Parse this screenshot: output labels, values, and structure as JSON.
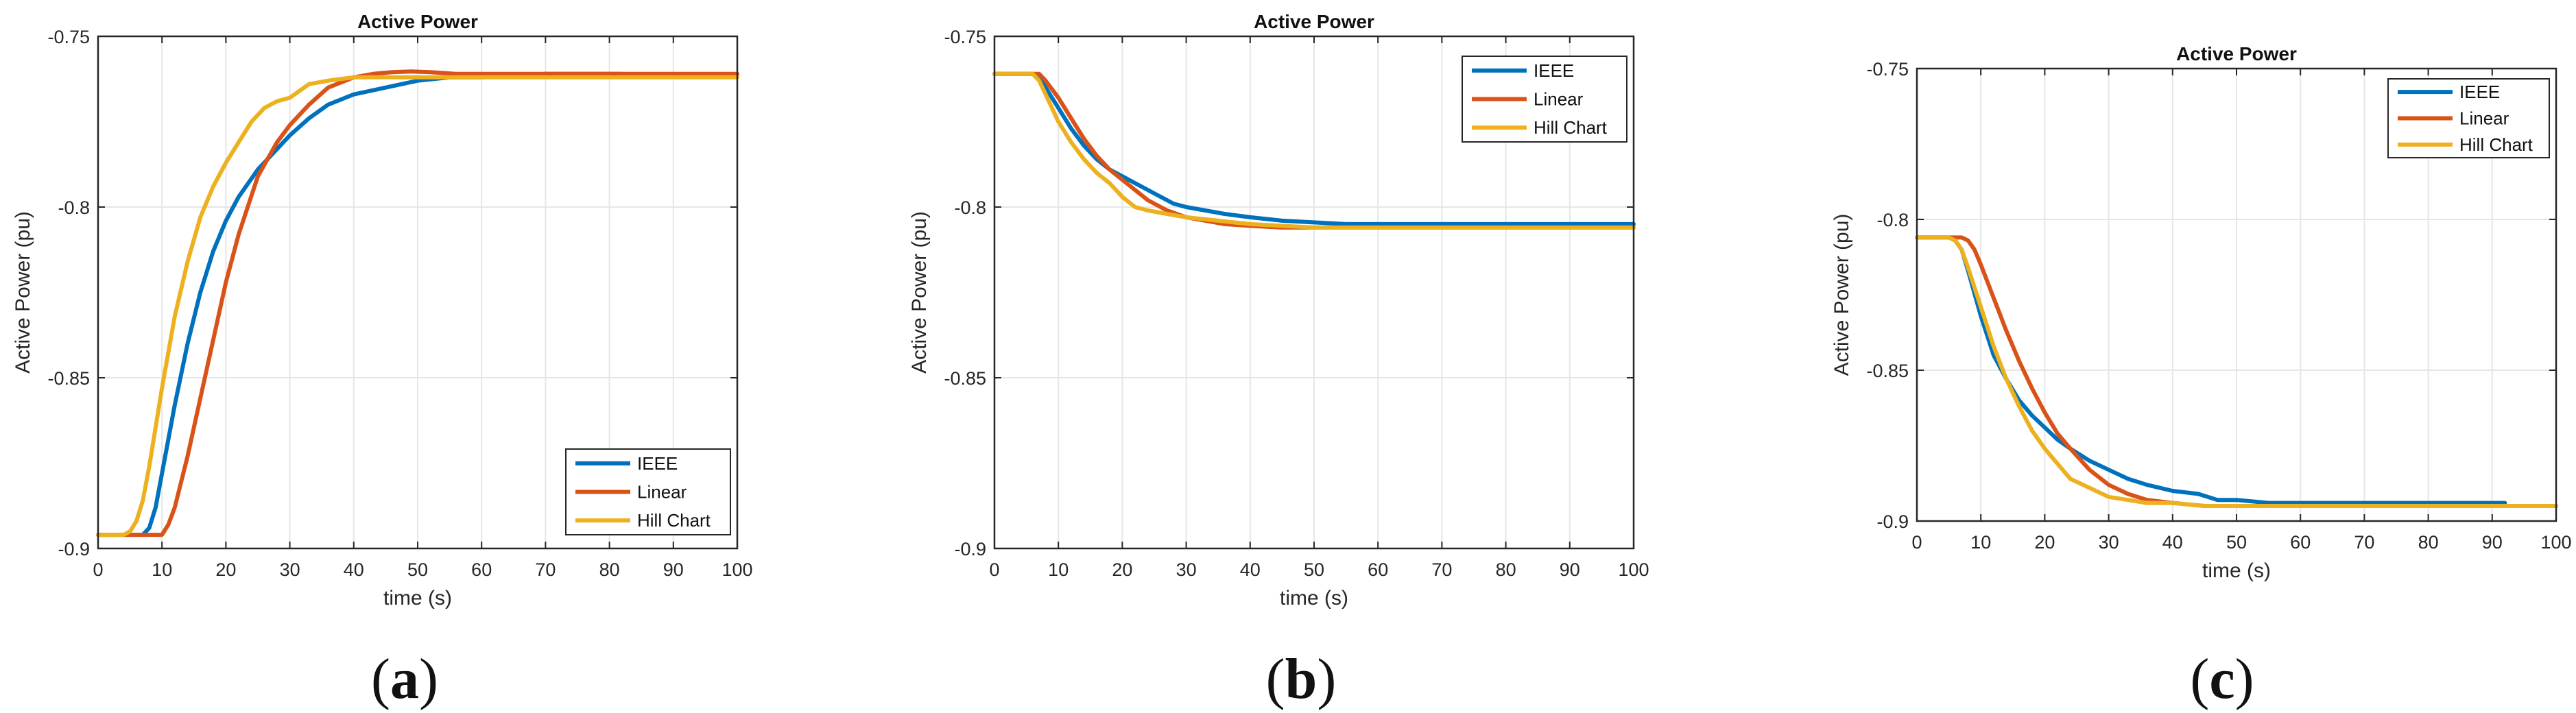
{
  "chart_data": [
    {
      "type": "line",
      "panel_label": "a",
      "title": "Active Power",
      "xlabel": "time (s)",
      "ylabel": "Active Power (pu)",
      "xlim": [
        0,
        100
      ],
      "ylim": [
        -0.9,
        -0.75
      ],
      "xticks": [
        0,
        10,
        20,
        30,
        40,
        50,
        60,
        70,
        80,
        90,
        100
      ],
      "yticks": [
        -0.9,
        -0.85,
        -0.8,
        -0.75
      ],
      "yticklabels": [
        "-0.9",
        "-0.85",
        "-0.8",
        "-0.75"
      ],
      "grid": true,
      "legend_position": "bottom-right",
      "series": [
        {
          "name": "IEEE",
          "color": "#0072BD",
          "x": [
            0,
            5,
            7,
            8,
            9,
            10,
            12,
            14,
            16,
            18,
            20,
            22,
            25,
            28,
            30,
            33,
            36,
            40,
            45,
            50,
            55,
            60,
            70,
            82
          ],
          "y": [
            -0.896,
            -0.896,
            -0.896,
            -0.894,
            -0.888,
            -0.878,
            -0.858,
            -0.84,
            -0.825,
            -0.813,
            -0.804,
            -0.797,
            -0.789,
            -0.783,
            -0.779,
            -0.774,
            -0.77,
            -0.767,
            -0.765,
            -0.763,
            -0.762,
            -0.762,
            -0.761,
            -0.761
          ]
        },
        {
          "name": "Linear",
          "color": "#D95319",
          "x": [
            0,
            8,
            10,
            11,
            12,
            14,
            16,
            18,
            20,
            22,
            25,
            28,
            30,
            33,
            36,
            40,
            43,
            46,
            49,
            52,
            56,
            60,
            70,
            100
          ],
          "y": [
            -0.896,
            -0.896,
            -0.896,
            -0.893,
            -0.888,
            -0.873,
            -0.856,
            -0.839,
            -0.822,
            -0.808,
            -0.791,
            -0.781,
            -0.776,
            -0.77,
            -0.765,
            -0.762,
            -0.761,
            -0.7605,
            -0.7603,
            -0.7605,
            -0.761,
            -0.761,
            -0.761,
            -0.761
          ]
        },
        {
          "name": "Hill Chart",
          "color": "#EDB120",
          "x": [
            0,
            4,
            5,
            6,
            7,
            8,
            10,
            12,
            14,
            16,
            18,
            20,
            22,
            24,
            26,
            28,
            30,
            33,
            36,
            40,
            45,
            50,
            60,
            100
          ],
          "y": [
            -0.896,
            -0.896,
            -0.895,
            -0.892,
            -0.886,
            -0.876,
            -0.853,
            -0.832,
            -0.816,
            -0.803,
            -0.794,
            -0.787,
            -0.781,
            -0.775,
            -0.771,
            -0.769,
            -0.768,
            -0.764,
            -0.763,
            -0.762,
            -0.762,
            -0.762,
            -0.762,
            -0.762
          ]
        }
      ]
    },
    {
      "type": "line",
      "panel_label": "b",
      "title": "Active Power",
      "xlabel": "time (s)",
      "ylabel": "Active Power (pu)",
      "xlim": [
        0,
        100
      ],
      "ylim": [
        -0.9,
        -0.75
      ],
      "xticks": [
        0,
        10,
        20,
        30,
        40,
        50,
        60,
        70,
        80,
        90,
        100
      ],
      "yticks": [
        -0.9,
        -0.85,
        -0.8,
        -0.75
      ],
      "yticklabels": [
        "-0.9",
        "-0.85",
        "-0.8",
        "-0.75"
      ],
      "grid": true,
      "legend_position": "top-right",
      "series": [
        {
          "name": "IEEE",
          "color": "#0072BD",
          "x": [
            0,
            6,
            7,
            8,
            10,
            12,
            14,
            16,
            18,
            20,
            22,
            25,
            28,
            30,
            33,
            36,
            40,
            45,
            50,
            55,
            60,
            70,
            100
          ],
          "y": [
            -0.761,
            -0.761,
            -0.762,
            -0.765,
            -0.771,
            -0.777,
            -0.782,
            -0.786,
            -0.789,
            -0.791,
            -0.793,
            -0.796,
            -0.799,
            -0.8,
            -0.801,
            -0.802,
            -0.803,
            -0.804,
            -0.8045,
            -0.805,
            -0.805,
            -0.805,
            -0.805
          ]
        },
        {
          "name": "Linear",
          "color": "#D95319",
          "x": [
            0,
            6,
            7,
            8,
            10,
            12,
            14,
            16,
            18,
            20,
            22,
            24,
            27,
            30,
            33,
            36,
            40,
            45,
            50,
            60,
            100
          ],
          "y": [
            -0.761,
            -0.761,
            -0.761,
            -0.763,
            -0.768,
            -0.774,
            -0.78,
            -0.785,
            -0.789,
            -0.792,
            -0.795,
            -0.798,
            -0.801,
            -0.803,
            -0.804,
            -0.805,
            -0.8055,
            -0.806,
            -0.806,
            -0.806,
            -0.806
          ]
        },
        {
          "name": "Hill Chart",
          "color": "#EDB120",
          "x": [
            0,
            6,
            7,
            8,
            10,
            12,
            14,
            16,
            18,
            20,
            22,
            24,
            27,
            30,
            35,
            40,
            50,
            60,
            100
          ],
          "y": [
            -0.761,
            -0.761,
            -0.763,
            -0.767,
            -0.775,
            -0.781,
            -0.786,
            -0.79,
            -0.793,
            -0.797,
            -0.8,
            -0.801,
            -0.802,
            -0.803,
            -0.804,
            -0.805,
            -0.806,
            -0.806,
            -0.806
          ]
        }
      ]
    },
    {
      "type": "line",
      "panel_label": "c",
      "title": "Active Power",
      "xlabel": "time (s)",
      "ylabel": "Active Power (pu)",
      "xlim": [
        0,
        100
      ],
      "ylim": [
        -0.9,
        -0.75
      ],
      "xticks": [
        0,
        10,
        20,
        30,
        40,
        50,
        60,
        70,
        80,
        90,
        100
      ],
      "yticks": [
        -0.9,
        -0.85,
        -0.8,
        -0.75
      ],
      "yticklabels": [
        "-0.9",
        "-0.85",
        "-0.8",
        "-0.75"
      ],
      "grid": true,
      "legend_position": "top-right",
      "series": [
        {
          "name": "IEEE",
          "color": "#0072BD",
          "x": [
            0,
            5,
            6,
            7,
            8,
            10,
            12,
            14,
            16,
            18,
            20,
            22,
            24,
            27,
            30,
            33,
            36,
            40,
            44,
            47,
            50,
            55,
            60,
            70,
            92
          ],
          "y": [
            -0.806,
            -0.806,
            -0.807,
            -0.81,
            -0.817,
            -0.832,
            -0.845,
            -0.853,
            -0.86,
            -0.865,
            -0.869,
            -0.873,
            -0.876,
            -0.88,
            -0.883,
            -0.886,
            -0.888,
            -0.89,
            -0.891,
            -0.893,
            -0.893,
            -0.894,
            -0.894,
            -0.894,
            -0.894
          ]
        },
        {
          "name": "Linear",
          "color": "#D95319",
          "x": [
            0,
            6,
            7,
            8,
            9,
            10,
            12,
            14,
            16,
            18,
            20,
            22,
            24,
            27,
            30,
            33,
            36,
            40,
            45,
            50,
            60,
            100
          ],
          "y": [
            -0.806,
            -0.806,
            -0.806,
            -0.807,
            -0.81,
            -0.815,
            -0.826,
            -0.837,
            -0.847,
            -0.856,
            -0.864,
            -0.871,
            -0.876,
            -0.883,
            -0.888,
            -0.891,
            -0.893,
            -0.894,
            -0.895,
            -0.895,
            -0.895,
            -0.895
          ]
        },
        {
          "name": "Hill Chart",
          "color": "#EDB120",
          "x": [
            0,
            5,
            6,
            7,
            8,
            10,
            12,
            14,
            16,
            18,
            20,
            22,
            24,
            26,
            28,
            30,
            33,
            36,
            40,
            45,
            50,
            60,
            100
          ],
          "y": [
            -0.806,
            -0.806,
            -0.807,
            -0.81,
            -0.816,
            -0.829,
            -0.842,
            -0.853,
            -0.862,
            -0.87,
            -0.876,
            -0.881,
            -0.886,
            -0.888,
            -0.89,
            -0.892,
            -0.893,
            -0.894,
            -0.894,
            -0.895,
            -0.895,
            -0.895,
            -0.895
          ]
        }
      ]
    }
  ]
}
